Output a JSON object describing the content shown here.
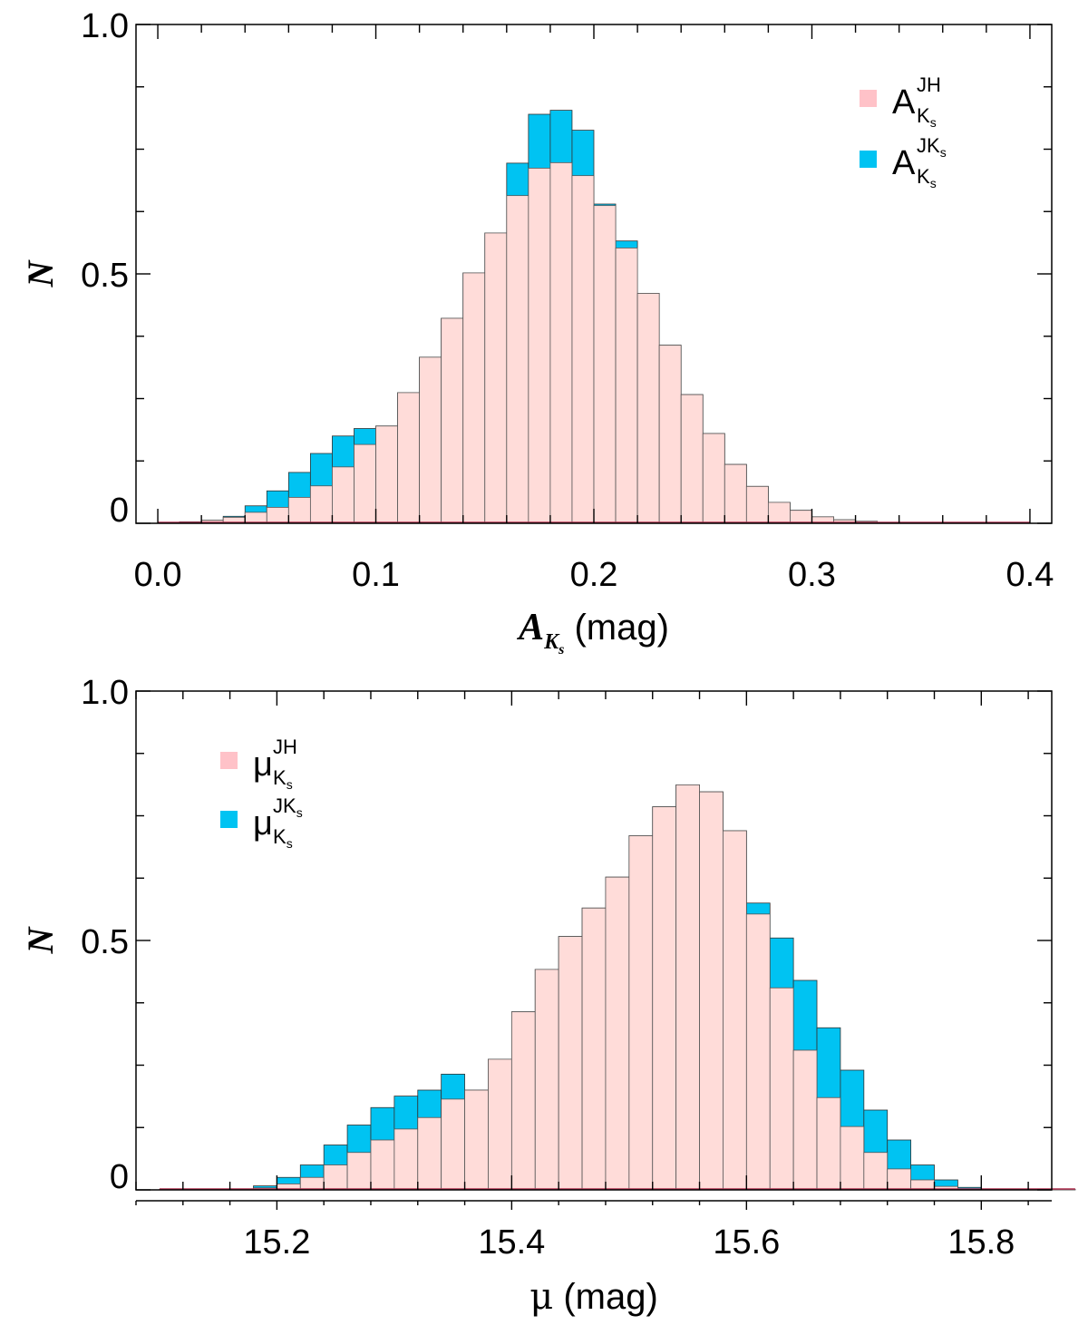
{
  "colors": {
    "pink": "#ffdcd9",
    "pink_swatch": "#ffc2c8",
    "blue": "#00c3f2",
    "edge": "#555555",
    "axis": "#000000",
    "baseline": "#b03050"
  },
  "chart_data": [
    {
      "type": "bar",
      "name": "top-histogram",
      "bin_width": 0.01,
      "x_start": 0.0,
      "xlim": [
        -0.01,
        0.41
      ],
      "ylim": [
        0,
        1.0
      ],
      "xticks": [
        0.0,
        0.1,
        0.2,
        0.3,
        0.4
      ],
      "xtick_labels": [
        "0.0",
        "0.1",
        "0.2",
        "0.3",
        "0.4"
      ],
      "yticks": [
        0,
        0.5,
        1.0
      ],
      "ytick_labels": [
        "0",
        "0.5",
        "1.0"
      ],
      "ylabel": "N",
      "xlabel_main": "A",
      "xlabel_sub": "K",
      "xlabel_subsub": "s",
      "xlabel_unit": "(mag)",
      "legend_position": "top-right",
      "series": [
        {
          "name": "A_Ks^JH",
          "legend_base": "A",
          "legend_sub": "K",
          "legend_subsub": "s",
          "legend_sup": "JH",
          "legend_supsub": "",
          "values": [
            0.001,
            0.003,
            0.006,
            0.012,
            0.022,
            0.032,
            0.052,
            0.075,
            0.113,
            0.158,
            0.195,
            0.262,
            0.333,
            0.411,
            0.502,
            0.582,
            0.657,
            0.712,
            0.723,
            0.697,
            0.637,
            0.552,
            0.461,
            0.357,
            0.258,
            0.18,
            0.118,
            0.074,
            0.042,
            0.026,
            0.013,
            0.007,
            0.004,
            0.002,
            0.001,
            0.001,
            0.001,
            0.001,
            0.001,
            0.001
          ]
        },
        {
          "name": "A_Ks^JKs",
          "legend_base": "A",
          "legend_sub": "K",
          "legend_subsub": "s",
          "legend_sup": "JK",
          "legend_supsub": "s",
          "values": [
            0.001,
            0.003,
            0.006,
            0.014,
            0.035,
            0.065,
            0.102,
            0.14,
            0.175,
            0.19,
            0.195,
            0.262,
            0.333,
            0.411,
            0.502,
            0.582,
            0.722,
            0.82,
            0.828,
            0.788,
            0.64,
            0.566,
            0.461,
            0.357,
            0.258,
            0.18,
            0.118,
            0.074,
            0.042,
            0.026,
            0.013,
            0.007,
            0.004,
            0.002,
            0.001,
            0.001,
            0.001,
            0.001,
            0.001,
            0.001
          ]
        }
      ]
    },
    {
      "type": "bar",
      "name": "bottom-histogram",
      "bin_width": 0.02,
      "x_start": 15.1,
      "xlim": [
        15.08,
        15.86
      ],
      "ylim": [
        0,
        1.0
      ],
      "xticks": [
        15.2,
        15.4,
        15.6,
        15.8
      ],
      "xtick_labels": [
        "15.2",
        "15.4",
        "15.6",
        "15.8"
      ],
      "yticks": [
        0,
        0.5,
        1.0
      ],
      "ytick_labels": [
        "0",
        "0.5",
        "1.0"
      ],
      "ylabel": "N",
      "xlabel_main": "μ",
      "xlabel_unit": "(mag)",
      "legend_position": "top-left",
      "series": [
        {
          "name": "mu_Ks^JH",
          "legend_base": "μ",
          "legend_sub": "K",
          "legend_subsub": "s",
          "legend_sup": "JH",
          "legend_supsub": "",
          "values": [
            0.001,
            0.001,
            0.001,
            0.002,
            0.004,
            0.012,
            0.025,
            0.05,
            0.075,
            0.1,
            0.122,
            0.145,
            0.182,
            0.2,
            0.262,
            0.357,
            0.442,
            0.508,
            0.565,
            0.627,
            0.71,
            0.768,
            0.812,
            0.798,
            0.72,
            0.553,
            0.405,
            0.28,
            0.185,
            0.127,
            0.075,
            0.042,
            0.02,
            0.007,
            0.002,
            0.001,
            0.001,
            0.001,
            0.001
          ]
        },
        {
          "name": "mu_Ks^JKs",
          "legend_base": "μ",
          "legend_sub": "K",
          "legend_subsub": "s",
          "legend_sup": "JK",
          "legend_supsub": "s",
          "values": [
            0.001,
            0.001,
            0.001,
            0.002,
            0.008,
            0.025,
            0.05,
            0.09,
            0.13,
            0.165,
            0.188,
            0.2,
            0.232,
            0.2,
            0.262,
            0.357,
            0.442,
            0.508,
            0.565,
            0.627,
            0.71,
            0.768,
            0.812,
            0.798,
            0.72,
            0.575,
            0.505,
            0.42,
            0.325,
            0.24,
            0.16,
            0.1,
            0.05,
            0.02,
            0.005,
            0.001,
            0.001,
            0.001,
            0.001
          ]
        }
      ]
    }
  ]
}
